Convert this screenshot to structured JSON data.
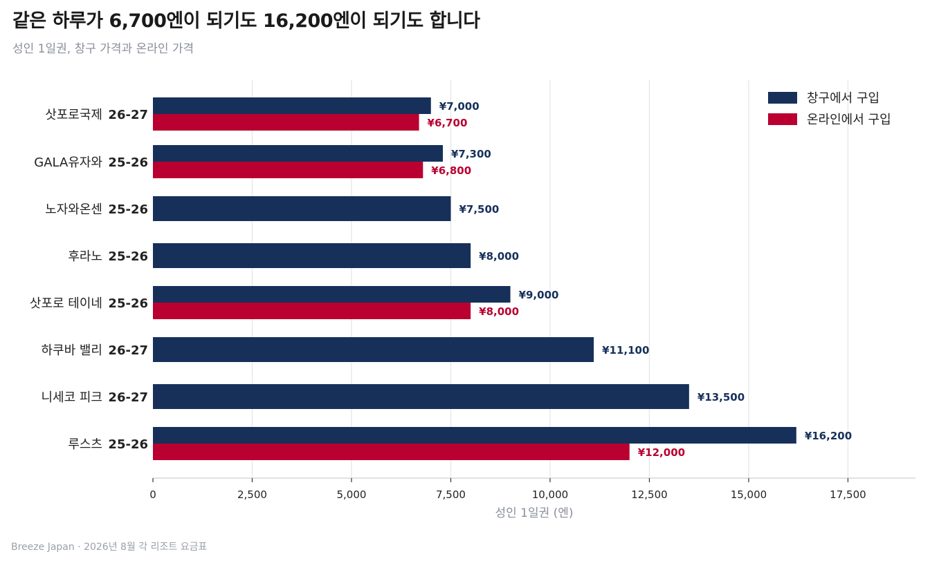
{
  "header": {
    "title": "같은 하루가 6,700엔이 되기도 16,200엔이 되기도 합니다",
    "subtitle": "성인 1일권, 창구 가격과 온라인 가격"
  },
  "footer": {
    "source": "Breeze Japan · 2026년 8월 각 리조트 요금표"
  },
  "colors": {
    "window": "#17305a",
    "online": "#b90030"
  },
  "chart_data": {
    "type": "bar",
    "orientation": "horizontal",
    "categories": [
      {
        "name": "삿포로국제",
        "season": "26-27"
      },
      {
        "name": "GALA유자와",
        "season": "25-26"
      },
      {
        "name": "노자와온센",
        "season": "25-26"
      },
      {
        "name": "후라노",
        "season": "25-26"
      },
      {
        "name": "삿포로 테이네",
        "season": "25-26"
      },
      {
        "name": "하쿠바 밸리",
        "season": "26-27"
      },
      {
        "name": "니세코 피크",
        "season": "26-27"
      },
      {
        "name": "루스츠",
        "season": "25-26"
      }
    ],
    "series": [
      {
        "name": "창구에서 구입",
        "color": "#17305a",
        "values": [
          7000,
          7300,
          7500,
          8000,
          9000,
          11100,
          13500,
          16200
        ],
        "labels": [
          "¥7,000",
          "¥7,300",
          "¥7,500",
          "¥8,000",
          "¥9,000",
          "¥11,100",
          "¥13,500",
          "¥16,200"
        ]
      },
      {
        "name": "온라인에서 구입",
        "color": "#b90030",
        "values": [
          6700,
          6800,
          null,
          null,
          8000,
          null,
          null,
          12000
        ],
        "labels": [
          "¥6,700",
          "¥6,800",
          null,
          null,
          "¥8,000",
          null,
          null,
          "¥12,000"
        ]
      }
    ],
    "xlabel": "성인 1일권 (엔)",
    "ylabel": "",
    "xlim": [
      0,
      19200
    ],
    "xticks": [
      0,
      2500,
      5000,
      7500,
      10000,
      12500,
      15000,
      17500
    ],
    "xtick_labels": [
      "0",
      "2,500",
      "5,000",
      "7,500",
      "10,000",
      "12,500",
      "15,000",
      "17,500"
    ],
    "grid": "vertical",
    "legend": "top-right"
  }
}
